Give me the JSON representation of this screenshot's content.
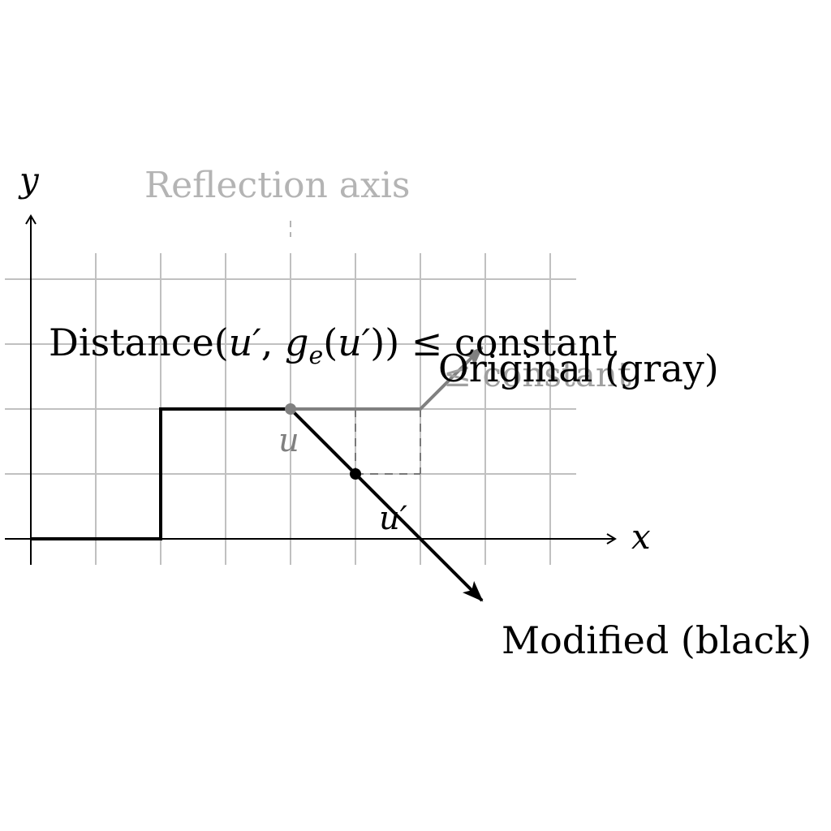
{
  "diagram": {
    "axes": {
      "x_label": "x",
      "y_label": "y"
    },
    "reflection_axis_label": "Reflection axis",
    "distance_prefix": "Distance(",
    "distance_u_prime": "u′",
    "distance_comma": ", ",
    "distance_g": "g",
    "distance_e": "e",
    "distance_open": "(",
    "distance_u_prime_2": "u′",
    "distance_close": "))",
    "distance_leq": " ≤ ",
    "distance_constant": "constant",
    "ghost_constant": "≤ constant",
    "point_u_label": "u",
    "point_u_prime_label": "u′",
    "original_label": "Original (gray)",
    "modified_label": "Modified (black)",
    "colors": {
      "grid": "#c0c0c0",
      "gray_path": "#808080",
      "black_path": "#000000",
      "axis_label_faint": "#b4b4b4"
    }
  }
}
